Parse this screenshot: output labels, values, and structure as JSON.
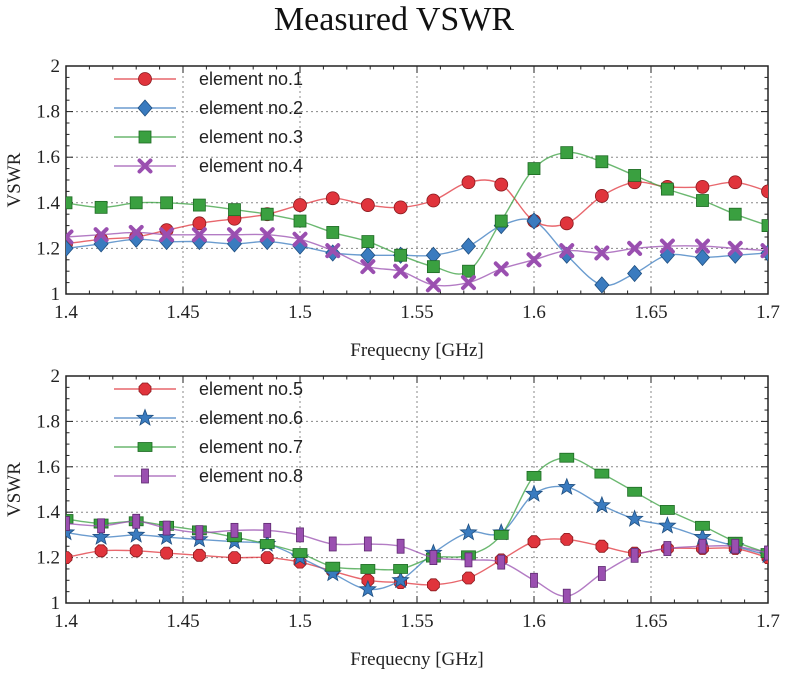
{
  "title": "Measured VSWR",
  "chart_data": [
    {
      "type": "line",
      "xlabel": "Frequecny [GHz]",
      "ylabel": "VSWR",
      "xlim": [
        1.4,
        1.7
      ],
      "ylim": [
        1,
        2
      ],
      "xticks": [
        "1.4",
        "1.45",
        "1.5",
        "1.55",
        "1.6",
        "1.65",
        "1.7"
      ],
      "yticks": [
        "1",
        "1.2",
        "1.4",
        "1.6",
        "1.8",
        "2"
      ],
      "legend_position": "top-left",
      "series": [
        {
          "name": "element no.1",
          "color": "#e0343c",
          "marker": "circle",
          "x": [
            1.4,
            1.415,
            1.43,
            1.443,
            1.457,
            1.472,
            1.486,
            1.5,
            1.514,
            1.529,
            1.543,
            1.557,
            1.572,
            1.586,
            1.6,
            1.614,
            1.629,
            1.643,
            1.657,
            1.672,
            1.686,
            1.7
          ],
          "values": [
            1.22,
            1.24,
            1.25,
            1.28,
            1.31,
            1.33,
            1.35,
            1.39,
            1.42,
            1.39,
            1.38,
            1.41,
            1.49,
            1.48,
            1.32,
            1.31,
            1.43,
            1.49,
            1.47,
            1.47,
            1.49,
            1.45
          ]
        },
        {
          "name": "element no.2",
          "color": "#3a7bbf",
          "marker": "diamond",
          "x": [
            1.4,
            1.415,
            1.43,
            1.443,
            1.457,
            1.472,
            1.486,
            1.5,
            1.514,
            1.529,
            1.543,
            1.557,
            1.572,
            1.586,
            1.6,
            1.614,
            1.629,
            1.643,
            1.657,
            1.672,
            1.686,
            1.7
          ],
          "values": [
            1.2,
            1.22,
            1.24,
            1.23,
            1.23,
            1.22,
            1.23,
            1.21,
            1.18,
            1.17,
            1.17,
            1.17,
            1.21,
            1.3,
            1.32,
            1.17,
            1.04,
            1.09,
            1.17,
            1.16,
            1.17,
            1.18
          ]
        },
        {
          "name": "element no.3",
          "color": "#3aa040",
          "marker": "square",
          "x": [
            1.4,
            1.415,
            1.43,
            1.443,
            1.457,
            1.472,
            1.486,
            1.5,
            1.514,
            1.529,
            1.543,
            1.557,
            1.572,
            1.586,
            1.6,
            1.614,
            1.629,
            1.643,
            1.657,
            1.672,
            1.686,
            1.7
          ],
          "values": [
            1.4,
            1.38,
            1.4,
            1.4,
            1.39,
            1.37,
            1.35,
            1.32,
            1.27,
            1.23,
            1.17,
            1.12,
            1.1,
            1.32,
            1.55,
            1.62,
            1.58,
            1.52,
            1.46,
            1.41,
            1.35,
            1.3
          ]
        },
        {
          "name": "element no.4",
          "color": "#9a4fb0",
          "marker": "x",
          "x": [
            1.4,
            1.415,
            1.43,
            1.443,
            1.457,
            1.472,
            1.486,
            1.5,
            1.514,
            1.529,
            1.543,
            1.557,
            1.572,
            1.586,
            1.6,
            1.614,
            1.629,
            1.643,
            1.657,
            1.672,
            1.686,
            1.7
          ],
          "values": [
            1.25,
            1.26,
            1.27,
            1.26,
            1.26,
            1.26,
            1.26,
            1.24,
            1.19,
            1.12,
            1.1,
            1.04,
            1.05,
            1.11,
            1.15,
            1.19,
            1.18,
            1.2,
            1.21,
            1.21,
            1.2,
            1.19
          ]
        }
      ]
    },
    {
      "type": "line",
      "xlabel": "Frequecny [GHz]",
      "ylabel": "VSWR",
      "xlim": [
        1.4,
        1.7
      ],
      "ylim": [
        1,
        2
      ],
      "xticks": [
        "1.4",
        "1.45",
        "1.5",
        "1.55",
        "1.6",
        "1.65",
        "1.7"
      ],
      "yticks": [
        "1",
        "1.2",
        "1.4",
        "1.6",
        "1.8",
        "2"
      ],
      "legend_position": "top-left",
      "series": [
        {
          "name": "element no.5",
          "color": "#e0343c",
          "marker": "octagon",
          "x": [
            1.4,
            1.415,
            1.43,
            1.443,
            1.457,
            1.472,
            1.486,
            1.5,
            1.514,
            1.529,
            1.543,
            1.557,
            1.572,
            1.586,
            1.6,
            1.614,
            1.629,
            1.643,
            1.657,
            1.672,
            1.686,
            1.7
          ],
          "values": [
            1.2,
            1.23,
            1.23,
            1.22,
            1.21,
            1.2,
            1.2,
            1.18,
            1.14,
            1.1,
            1.09,
            1.08,
            1.11,
            1.19,
            1.27,
            1.28,
            1.25,
            1.22,
            1.24,
            1.24,
            1.24,
            1.2
          ]
        },
        {
          "name": "element no.6",
          "color": "#3a7bbf",
          "marker": "star",
          "x": [
            1.4,
            1.415,
            1.43,
            1.443,
            1.457,
            1.472,
            1.486,
            1.5,
            1.514,
            1.529,
            1.543,
            1.557,
            1.572,
            1.586,
            1.6,
            1.614,
            1.629,
            1.643,
            1.657,
            1.672,
            1.686,
            1.7
          ],
          "values": [
            1.31,
            1.29,
            1.3,
            1.29,
            1.28,
            1.27,
            1.26,
            1.2,
            1.13,
            1.06,
            1.1,
            1.22,
            1.31,
            1.31,
            1.48,
            1.51,
            1.43,
            1.37,
            1.34,
            1.29,
            1.25,
            1.21
          ]
        },
        {
          "name": "element no.7",
          "color": "#3aa040",
          "marker": "rect",
          "x": [
            1.4,
            1.415,
            1.43,
            1.443,
            1.457,
            1.472,
            1.486,
            1.5,
            1.514,
            1.529,
            1.543,
            1.557,
            1.572,
            1.586,
            1.6,
            1.614,
            1.629,
            1.643,
            1.657,
            1.672,
            1.686,
            1.7
          ],
          "values": [
            1.37,
            1.35,
            1.36,
            1.34,
            1.32,
            1.29,
            1.26,
            1.22,
            1.16,
            1.15,
            1.15,
            1.2,
            1.21,
            1.3,
            1.56,
            1.64,
            1.57,
            1.49,
            1.41,
            1.34,
            1.27,
            1.22
          ]
        },
        {
          "name": "element no.8",
          "color": "#9a4fb0",
          "marker": "bar",
          "x": [
            1.4,
            1.415,
            1.43,
            1.443,
            1.457,
            1.472,
            1.486,
            1.5,
            1.514,
            1.529,
            1.543,
            1.557,
            1.572,
            1.586,
            1.6,
            1.614,
            1.629,
            1.643,
            1.657,
            1.672,
            1.686,
            1.7
          ],
          "values": [
            1.35,
            1.34,
            1.36,
            1.33,
            1.31,
            1.32,
            1.32,
            1.3,
            1.26,
            1.26,
            1.25,
            1.2,
            1.19,
            1.18,
            1.1,
            1.03,
            1.13,
            1.21,
            1.24,
            1.25,
            1.25,
            1.22
          ]
        }
      ]
    }
  ]
}
